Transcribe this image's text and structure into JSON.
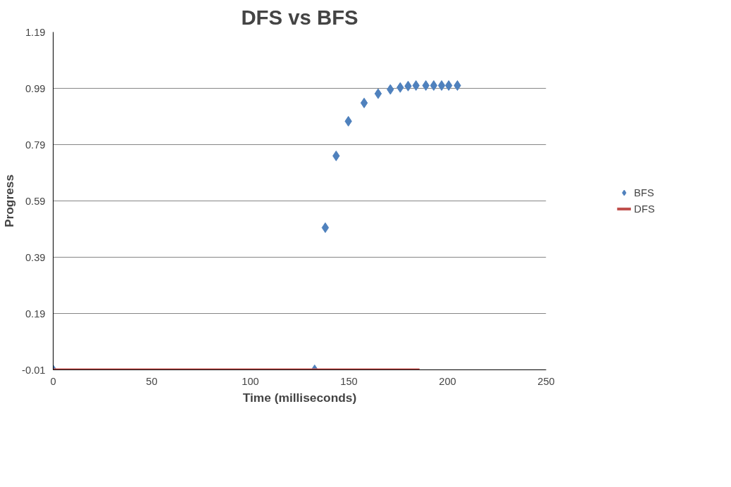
{
  "chart_data": {
    "type": "scatter",
    "title": "DFS vs BFS",
    "xlabel": "Time (milliseconds)",
    "ylabel": "Progress",
    "xlim": [
      0,
      250
    ],
    "xticks": [
      0,
      50,
      100,
      150,
      200,
      250
    ],
    "ylim": [
      -0.01,
      1.19
    ],
    "yticks": [
      -0.01,
      0.19,
      0.39,
      0.59,
      0.79,
      0.99,
      1.19
    ],
    "grid": "y",
    "legend": "right",
    "series": [
      {
        "name": "BFS",
        "marker": "diamond",
        "color": "#4f81bd",
        "x": [
          0,
          132.6,
          138,
          143.5,
          149.7,
          157.7,
          164.8,
          171,
          176,
          180,
          184,
          189,
          193,
          197,
          200.6,
          205
        ],
        "values": [
          -0.01,
          -0.01,
          0.495,
          0.75,
          0.873,
          0.938,
          0.971,
          0.986,
          0.993,
          0.998,
          1.0,
          1.0,
          1.0,
          1.0,
          1.0,
          1.0
        ]
      },
      {
        "name": "DFS",
        "type": "line",
        "line_style": "solid",
        "color": "#c0504d",
        "x": [
          0,
          185.8
        ],
        "values": [
          -0.01,
          -0.01
        ]
      }
    ]
  }
}
